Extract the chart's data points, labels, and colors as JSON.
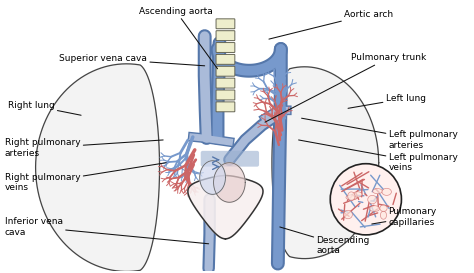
{
  "bg_color": "#ffffff",
  "labels": {
    "ascending_aorta": "Ascending aorta",
    "aortic_arch": "Aortic arch",
    "superior_vena_cava": "Superior vena cava",
    "right_lung": "Right lung",
    "left_lung": "Left lung",
    "pulmonary_trunk": "Pulmonary trunk",
    "right_pulmonary_arteries": "Right pulmonary\narteries",
    "right_pulmonary_veins": "Right pulmonary\nveins",
    "left_pulmonary_arteries": "Left pulmonary\narteries",
    "left_pulmonary_veins": "Left pulmonary\nveins",
    "inferior_vena_cava": "Inferior vena\ncava",
    "pulmonary_capillaries": "Pulmonary\ncapillaries",
    "descending_aorta": "Descending\naorta"
  },
  "colors": {
    "blue_vessel": "#7799cc",
    "blue_vessel_dark": "#5577aa",
    "blue_light": "#aabbd9",
    "red_vessel": "#cc6666",
    "red_vessel_dark": "#aa3333",
    "lung_fill": "#f2f2f2",
    "lung_outline": "#444444",
    "heart_outline": "#333333",
    "heart_fill": "#f8f0f0",
    "spine_fill": "#eeeecc",
    "spine_outline": "#666655",
    "cap_fill": "#fff0ee",
    "text": "#000000",
    "arrow": "#111111"
  },
  "figsize": [
    4.74,
    2.73
  ],
  "dpi": 100
}
